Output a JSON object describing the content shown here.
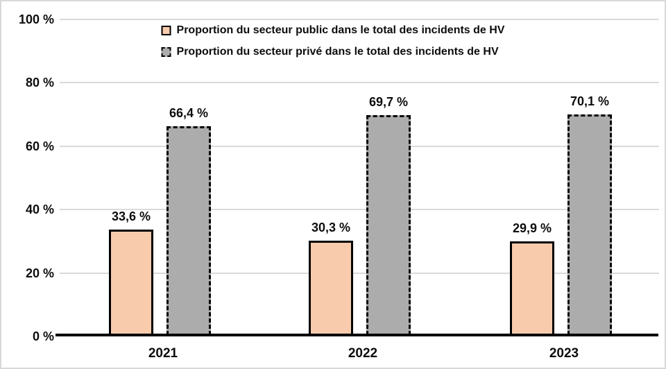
{
  "figure": {
    "background": "#FFFFFF",
    "frame_color": "#D8D8D8"
  },
  "chart_data": {
    "type": "bar",
    "title": "",
    "xlabel": "",
    "ylabel": "",
    "categories": [
      "2021",
      "2022",
      "2023"
    ],
    "series": [
      {
        "name": "Proportion du secteur public dans le total des incidents de HV",
        "values": [
          33.6,
          30.3,
          29.9
        ],
        "value_labels": [
          "33,6 %",
          "30,3 %",
          "29,9 %"
        ],
        "fill": "#F8CBAD",
        "border_color": "#000000",
        "border_style": "solid"
      },
      {
        "name": "Proportion du secteur privé dans le total des incidents de HV",
        "values": [
          66.4,
          69.7,
          70.1
        ],
        "value_labels": [
          "66,4 %",
          "69,7 %",
          "70,1 %"
        ],
        "fill": "#ACACAC",
        "border_color": "#000000",
        "border_style": "dashed"
      }
    ],
    "ylim": [
      0,
      100
    ],
    "yticks": [
      0,
      20,
      40,
      60,
      80,
      100
    ],
    "ytick_labels": [
      "0 %",
      "20 %",
      "40 %",
      "60 %",
      "80 %",
      "100 %"
    ],
    "grid": true,
    "gridline_color": "#DADADA",
    "axis_color": "#000000",
    "legend_position": "top-center"
  }
}
